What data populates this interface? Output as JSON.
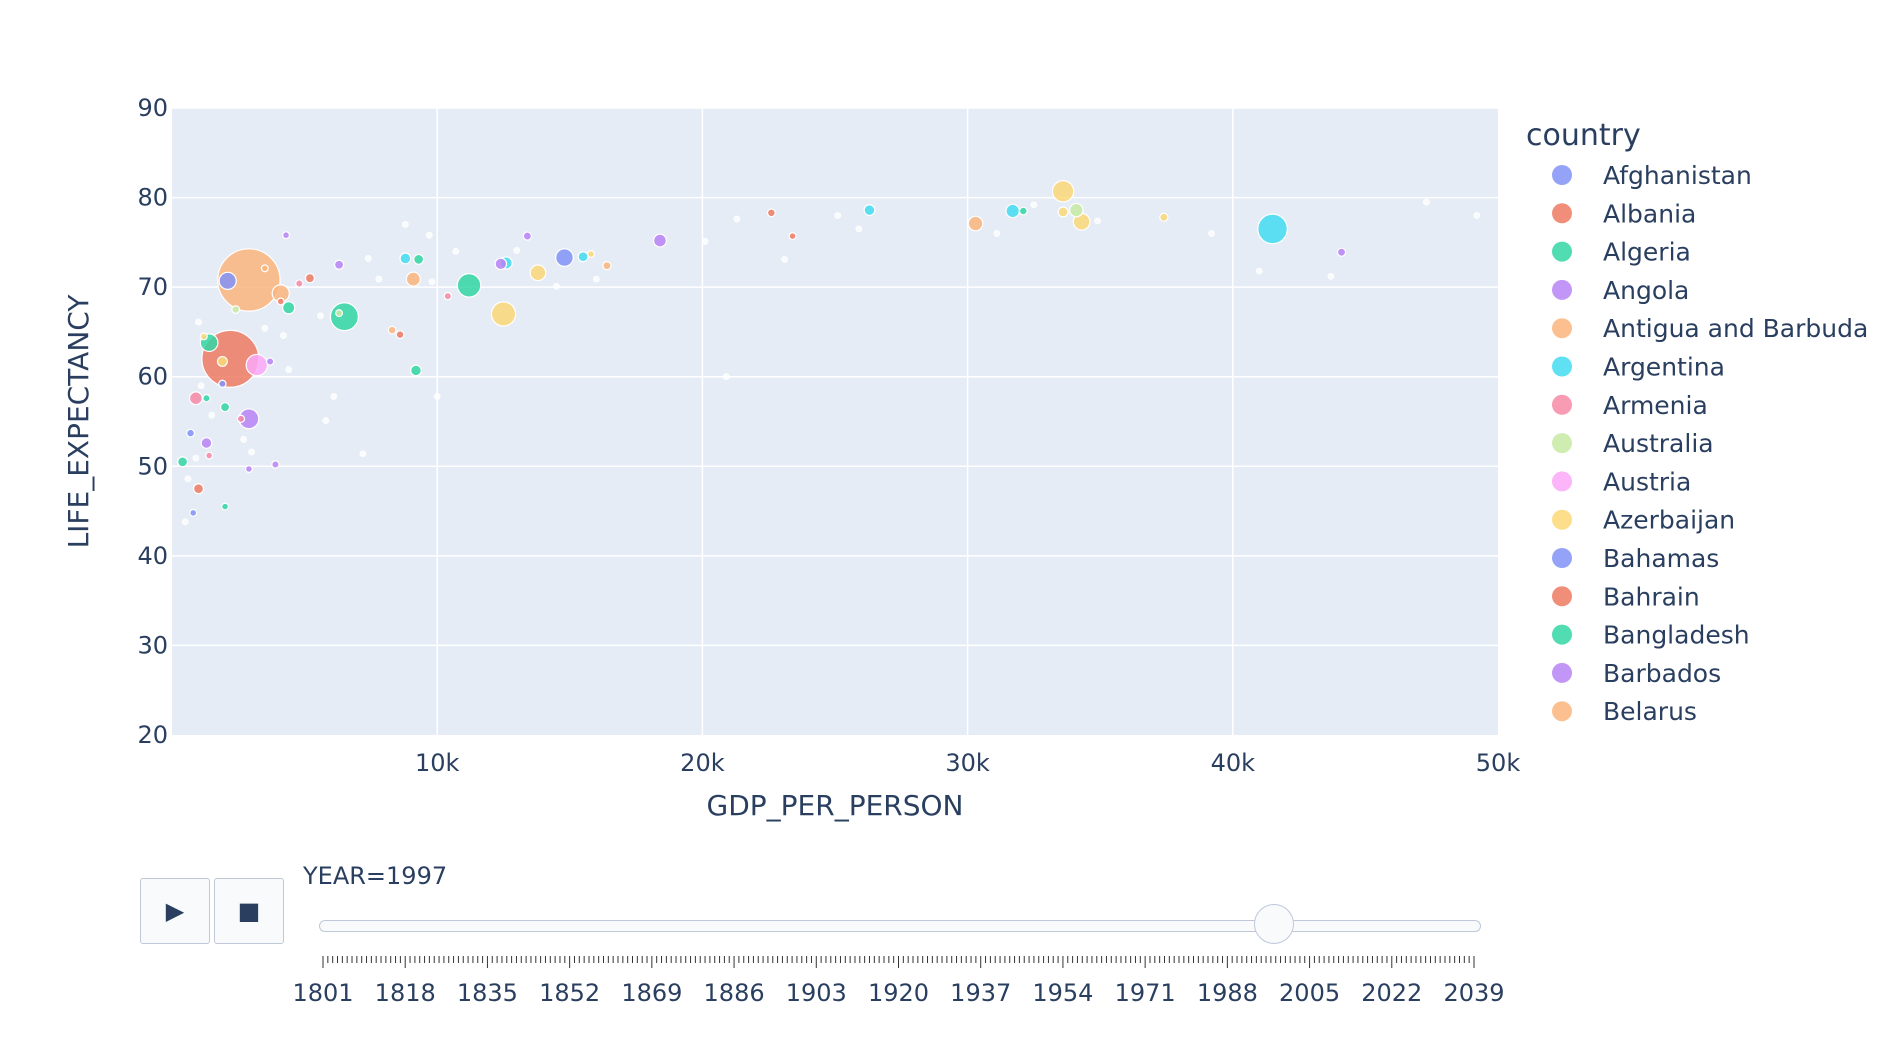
{
  "chart_data": {
    "type": "scatter",
    "xlabel": "GDP_PER_PERSON",
    "ylabel": "LIFE_EXPECTANCY",
    "xlim": [
      0,
      50000
    ],
    "ylim": [
      20,
      90
    ],
    "x_ticks": [
      10000,
      20000,
      30000,
      40000,
      50000
    ],
    "x_tick_labels": [
      "10k",
      "20k",
      "30k",
      "40k",
      "50k"
    ],
    "y_ticks": [
      20,
      30,
      40,
      50,
      60,
      70,
      80,
      90
    ],
    "grid": true,
    "legend_position": "right",
    "legend": {
      "title": "country",
      "entries": [
        {
          "name": "Afghanistan",
          "color": "#8193f7"
        },
        {
          "name": "Albania",
          "color": "#ef7a63"
        },
        {
          "name": "Algeria",
          "color": "#33d6a3"
        },
        {
          "name": "Angola",
          "color": "#b784f5"
        },
        {
          "name": "Antigua and Barbuda",
          "color": "#fbb57c"
        },
        {
          "name": "Argentina",
          "color": "#43dcf1"
        },
        {
          "name": "Armenia",
          "color": "#f78aa6"
        },
        {
          "name": "Australia",
          "color": "#c7eaa2"
        },
        {
          "name": "Austria",
          "color": "#fca8f8"
        },
        {
          "name": "Azerbaijan",
          "color": "#fbd877"
        },
        {
          "name": "Bahamas",
          "color": "#8193f7"
        },
        {
          "name": "Bahrain",
          "color": "#ef7a63"
        },
        {
          "name": "Bangladesh",
          "color": "#33d6a3"
        },
        {
          "name": "Barbados",
          "color": "#b784f5"
        },
        {
          "name": "Belarus",
          "color": "#fbb57c"
        }
      ]
    },
    "points": [
      {
        "x": 2900,
        "y": 70.8,
        "size": 1200,
        "color": "#fbb57c"
      },
      {
        "x": 2200,
        "y": 62.0,
        "size": 1000,
        "color": "#ef7a63"
      },
      {
        "x": 41500,
        "y": 76.5,
        "size": 270,
        "color": "#43dcf1"
      },
      {
        "x": 6500,
        "y": 66.7,
        "size": 240,
        "color": "#33d6a3"
      },
      {
        "x": 12500,
        "y": 67.0,
        "size": 180,
        "color": "#fbd877"
      },
      {
        "x": 11200,
        "y": 70.2,
        "size": 170,
        "color": "#33d6a3"
      },
      {
        "x": 33600,
        "y": 80.7,
        "size": 140,
        "color": "#fbd877"
      },
      {
        "x": 3200,
        "y": 61.3,
        "size": 140,
        "color": "#fca8f8"
      },
      {
        "x": 2900,
        "y": 55.3,
        "size": 120,
        "color": "#b784f5"
      },
      {
        "x": 14800,
        "y": 73.3,
        "size": 95,
        "color": "#8193f7"
      },
      {
        "x": 1400,
        "y": 63.8,
        "size": 95,
        "color": "#33d6a3"
      },
      {
        "x": 4100,
        "y": 69.3,
        "size": 90,
        "color": "#fbb57c"
      },
      {
        "x": 2100,
        "y": 70.7,
        "size": 90,
        "color": "#8193f7"
      },
      {
        "x": 34300,
        "y": 77.3,
        "size": 85,
        "color": "#fbd877"
      },
      {
        "x": 13800,
        "y": 71.6,
        "size": 75,
        "color": "#fbd877"
      },
      {
        "x": 30300,
        "y": 77.1,
        "size": 65,
        "color": "#fbb57c"
      },
      {
        "x": 9100,
        "y": 70.9,
        "size": 60,
        "color": "#fbb57c"
      },
      {
        "x": 34100,
        "y": 78.6,
        "size": 55,
        "color": "#c7eaa2"
      },
      {
        "x": 31700,
        "y": 78.5,
        "size": 55,
        "color": "#43dcf1"
      },
      {
        "x": 18400,
        "y": 75.2,
        "size": 50,
        "color": "#b784f5"
      },
      {
        "x": 900,
        "y": 57.6,
        "size": 50,
        "color": "#f78aa6"
      },
      {
        "x": 4400,
        "y": 67.7,
        "size": 45,
        "color": "#33d6a3"
      },
      {
        "x": 12600,
        "y": 72.7,
        "size": 45,
        "color": "#43dcf1"
      },
      {
        "x": 12400,
        "y": 72.6,
        "size": 40,
        "color": "#b784f5"
      },
      {
        "x": 26300,
        "y": 78.6,
        "size": 35,
        "color": "#43dcf1"
      },
      {
        "x": 9200,
        "y": 60.7,
        "size": 35,
        "color": "#33d6a3"
      },
      {
        "x": 8800,
        "y": 73.2,
        "size": 35,
        "color": "#43dcf1"
      },
      {
        "x": 1300,
        "y": 52.6,
        "size": 35,
        "color": "#b784f5"
      },
      {
        "x": 1900,
        "y": 61.7,
        "size": 30,
        "color": "#fbd877"
      },
      {
        "x": 33600,
        "y": 78.4,
        "size": 30,
        "color": "#fbd877"
      },
      {
        "x": 15500,
        "y": 73.4,
        "size": 30,
        "color": "#43dcf1"
      },
      {
        "x": 9300,
        "y": 73.1,
        "size": 30,
        "color": "#33d6a3"
      },
      {
        "x": 1000,
        "y": 47.5,
        "size": 30,
        "color": "#ef7a63"
      },
      {
        "x": 400,
        "y": 50.5,
        "size": 30,
        "color": "#33d6a3"
      },
      {
        "x": 2000,
        "y": 56.6,
        "size": 25,
        "color": "#33d6a3"
      },
      {
        "x": 5200,
        "y": 71.0,
        "size": 25,
        "color": "#ef7a63"
      },
      {
        "x": 6300,
        "y": 72.5,
        "size": 25,
        "color": "#b784f5"
      },
      {
        "x": 44100,
        "y": 73.9,
        "size": 20,
        "color": "#b784f5"
      },
      {
        "x": 37400,
        "y": 77.8,
        "size": 20,
        "color": "#fbd877"
      },
      {
        "x": 16400,
        "y": 72.4,
        "size": 20,
        "color": "#fbb57c"
      },
      {
        "x": 13400,
        "y": 75.7,
        "size": 20,
        "color": "#b784f5"
      },
      {
        "x": 22600,
        "y": 78.3,
        "size": 18,
        "color": "#ef7a63"
      },
      {
        "x": 32100,
        "y": 78.5,
        "size": 18,
        "color": "#33d6a3"
      },
      {
        "x": 8300,
        "y": 65.2,
        "size": 18,
        "color": "#fbb57c"
      },
      {
        "x": 8600,
        "y": 64.7,
        "size": 18,
        "color": "#ef7a63"
      },
      {
        "x": 700,
        "y": 53.7,
        "size": 18,
        "color": "#8193f7"
      },
      {
        "x": 2400,
        "y": 67.5,
        "size": 18,
        "color": "#c7eaa2"
      },
      {
        "x": 1300,
        "y": 57.6,
        "size": 16,
        "color": "#33d6a3"
      },
      {
        "x": 10400,
        "y": 69.0,
        "size": 16,
        "color": "#f78aa6"
      },
      {
        "x": 4800,
        "y": 70.4,
        "size": 16,
        "color": "#f78aa6"
      },
      {
        "x": 3700,
        "y": 61.7,
        "size": 16,
        "color": "#b784f5"
      },
      {
        "x": 1900,
        "y": 59.2,
        "size": 16,
        "color": "#8193f7"
      },
      {
        "x": 2600,
        "y": 55.3,
        "size": 16,
        "color": "#f78aa6"
      },
      {
        "x": 3900,
        "y": 50.2,
        "size": 16,
        "color": "#b784f5"
      },
      {
        "x": 2900,
        "y": 49.7,
        "size": 14,
        "color": "#b784f5"
      },
      {
        "x": 1400,
        "y": 51.2,
        "size": 14,
        "color": "#f78aa6"
      },
      {
        "x": 2000,
        "y": 45.5,
        "size": 14,
        "color": "#33d6a3"
      },
      {
        "x": 800,
        "y": 44.8,
        "size": 14,
        "color": "#8193f7"
      },
      {
        "x": 4300,
        "y": 75.8,
        "size": 14,
        "color": "#b784f5"
      },
      {
        "x": 23400,
        "y": 75.7,
        "size": 14,
        "color": "#ef7a63"
      },
      {
        "x": 15800,
        "y": 73.7,
        "size": 14,
        "color": "#fbd877"
      },
      {
        "x": 4100,
        "y": 68.4,
        "size": 14,
        "color": "#ef7a63"
      },
      {
        "x": 3500,
        "y": 72.1,
        "size": 14,
        "color": "#fbb57c"
      },
      {
        "x": 6300,
        "y": 67.1,
        "size": 14,
        "color": "#c7eaa2"
      },
      {
        "x": 1200,
        "y": 64.5,
        "size": 14,
        "color": "#fbd877"
      },
      {
        "x": 47300,
        "y": 79.5,
        "size": 12,
        "color": "#ffffff"
      },
      {
        "x": 49200,
        "y": 78.0,
        "size": 12,
        "color": "#ffffff"
      },
      {
        "x": 39200,
        "y": 76.0,
        "size": 12,
        "color": "#ffffff"
      },
      {
        "x": 41000,
        "y": 71.8,
        "size": 12,
        "color": "#ffffff"
      },
      {
        "x": 34900,
        "y": 77.4,
        "size": 12,
        "color": "#ffffff"
      },
      {
        "x": 32500,
        "y": 79.2,
        "size": 12,
        "color": "#ffffff"
      },
      {
        "x": 31100,
        "y": 76.0,
        "size": 12,
        "color": "#ffffff"
      },
      {
        "x": 25100,
        "y": 78.0,
        "size": 12,
        "color": "#ffffff"
      },
      {
        "x": 25900,
        "y": 76.5,
        "size": 12,
        "color": "#ffffff"
      },
      {
        "x": 23100,
        "y": 73.1,
        "size": 12,
        "color": "#ffffff"
      },
      {
        "x": 21300,
        "y": 77.6,
        "size": 12,
        "color": "#ffffff"
      },
      {
        "x": 20100,
        "y": 75.1,
        "size": 12,
        "color": "#ffffff"
      },
      {
        "x": 20900,
        "y": 60.0,
        "size": 12,
        "color": "#ffffff"
      },
      {
        "x": 16000,
        "y": 70.9,
        "size": 12,
        "color": "#ffffff"
      },
      {
        "x": 14500,
        "y": 70.1,
        "size": 12,
        "color": "#ffffff"
      },
      {
        "x": 13000,
        "y": 74.1,
        "size": 12,
        "color": "#ffffff"
      },
      {
        "x": 10700,
        "y": 74.0,
        "size": 12,
        "color": "#ffffff"
      },
      {
        "x": 10000,
        "y": 57.8,
        "size": 12,
        "color": "#ffffff"
      },
      {
        "x": 9800,
        "y": 70.6,
        "size": 12,
        "color": "#ffffff"
      },
      {
        "x": 9700,
        "y": 75.8,
        "size": 12,
        "color": "#ffffff"
      },
      {
        "x": 8800,
        "y": 77.0,
        "size": 12,
        "color": "#ffffff"
      },
      {
        "x": 7400,
        "y": 73.2,
        "size": 12,
        "color": "#ffffff"
      },
      {
        "x": 7800,
        "y": 70.9,
        "size": 12,
        "color": "#ffffff"
      },
      {
        "x": 7200,
        "y": 51.4,
        "size": 12,
        "color": "#ffffff"
      },
      {
        "x": 6100,
        "y": 57.8,
        "size": 12,
        "color": "#ffffff"
      },
      {
        "x": 5800,
        "y": 55.1,
        "size": 12,
        "color": "#ffffff"
      },
      {
        "x": 5600,
        "y": 66.8,
        "size": 12,
        "color": "#ffffff"
      },
      {
        "x": 4400,
        "y": 60.8,
        "size": 12,
        "color": "#ffffff"
      },
      {
        "x": 4200,
        "y": 64.6,
        "size": 12,
        "color": "#ffffff"
      },
      {
        "x": 3500,
        "y": 65.4,
        "size": 12,
        "color": "#ffffff"
      },
      {
        "x": 3000,
        "y": 51.6,
        "size": 12,
        "color": "#ffffff"
      },
      {
        "x": 2700,
        "y": 53.0,
        "size": 12,
        "color": "#ffffff"
      },
      {
        "x": 1500,
        "y": 55.7,
        "size": 12,
        "color": "#ffffff"
      },
      {
        "x": 1100,
        "y": 59.0,
        "size": 12,
        "color": "#ffffff"
      },
      {
        "x": 1000,
        "y": 66.1,
        "size": 12,
        "color": "#ffffff"
      },
      {
        "x": 500,
        "y": 43.8,
        "size": 12,
        "color": "#ffffff"
      },
      {
        "x": 600,
        "y": 48.6,
        "size": 12,
        "color": "#ffffff"
      },
      {
        "x": 900,
        "y": 50.9,
        "size": 12,
        "color": "#ffffff"
      },
      {
        "x": 43700,
        "y": 71.2,
        "size": 12,
        "color": "#ffffff"
      }
    ]
  },
  "animation": {
    "play_icon": "▶",
    "stop_icon": "■",
    "current_label": "YEAR=1997",
    "current_year": 1997,
    "year_start": 1801,
    "year_end": 2039,
    "tick_labels": [
      "1801",
      "1818",
      "1835",
      "1852",
      "1869",
      "1886",
      "1903",
      "1920",
      "1937",
      "1954",
      "1971",
      "1988",
      "2005",
      "2022",
      "2039"
    ]
  },
  "colors": {
    "plot_background": "#e5ecf6",
    "grid": "#ffffff",
    "text": "#2a3f5f"
  }
}
